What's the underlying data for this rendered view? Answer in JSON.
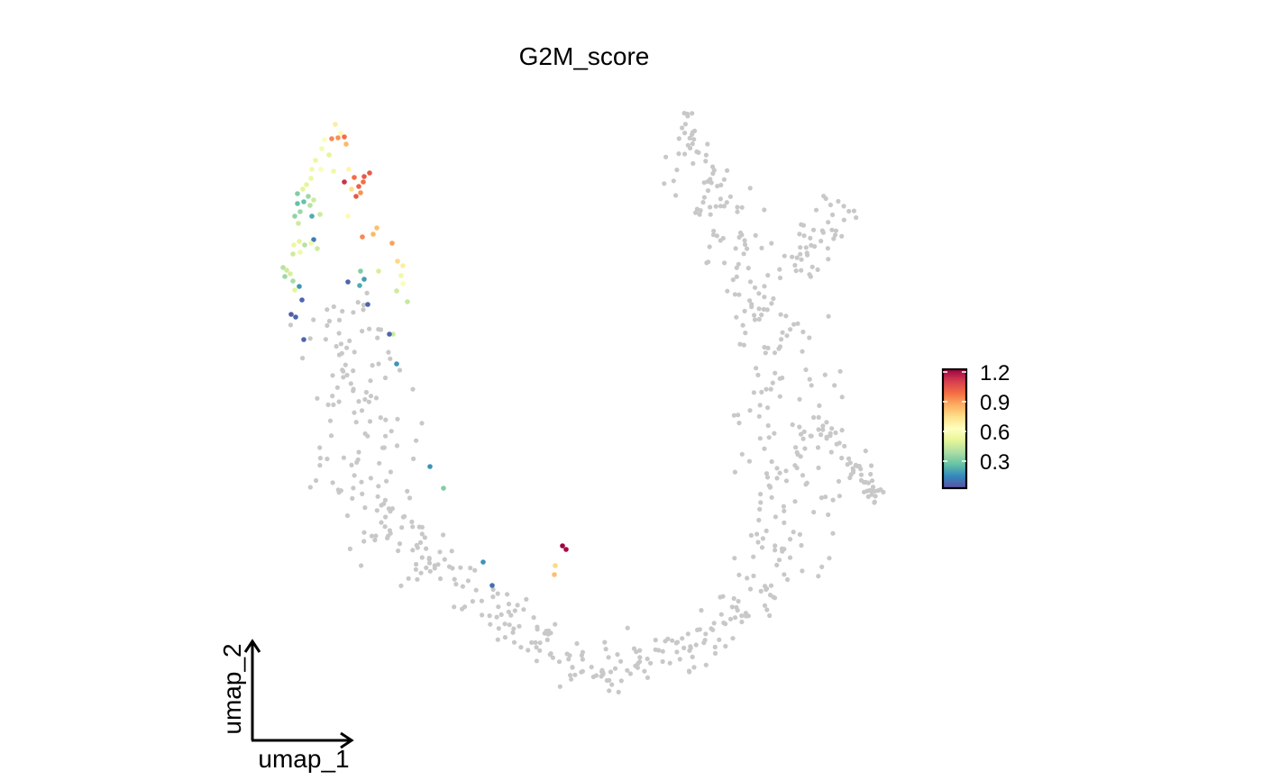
{
  "chart_data": {
    "type": "scatter",
    "title": "G2M_score",
    "xlabel": "umap_1",
    "ylabel": "umap_2",
    "background_color": "#c8c8c8",
    "grid": false,
    "legend_position": "right",
    "colorbar": {
      "ticks": [
        "1.2",
        "0.9",
        "0.6",
        "0.3"
      ],
      "range": [
        0.05,
        1.3
      ],
      "palette": [
        "#5e4fa2",
        "#3288bd",
        "#66c2a5",
        "#abdda4",
        "#e6f598",
        "#ffffbf",
        "#fee08b",
        "#fdae61",
        "#f46d43",
        "#d53e4f",
        "#9e0142"
      ]
    },
    "points": [
      {
        "x": 372,
        "y": 138,
        "v": 0.75
      },
      {
        "x": 378,
        "y": 148,
        "v": 0.7
      },
      {
        "x": 360,
        "y": 155,
        "v": 0.65
      },
      {
        "x": 368,
        "y": 154,
        "v": 1.0
      },
      {
        "x": 375,
        "y": 153,
        "v": 0.98
      },
      {
        "x": 382,
        "y": 152,
        "v": 1.05
      },
      {
        "x": 384,
        "y": 160,
        "v": 0.9
      },
      {
        "x": 357,
        "y": 165,
        "v": 0.62
      },
      {
        "x": 350,
        "y": 178,
        "v": 0.58
      },
      {
        "x": 365,
        "y": 172,
        "v": 0.55
      },
      {
        "x": 346,
        "y": 188,
        "v": 0.6
      },
      {
        "x": 356,
        "y": 188,
        "v": 0.65
      },
      {
        "x": 370,
        "y": 190,
        "v": 0.6
      },
      {
        "x": 387,
        "y": 188,
        "v": 0.72
      },
      {
        "x": 393,
        "y": 197,
        "v": 1.05
      },
      {
        "x": 404,
        "y": 196,
        "v": 1.1
      },
      {
        "x": 410,
        "y": 192,
        "v": 1.1
      },
      {
        "x": 382,
        "y": 202,
        "v": 1.2
      },
      {
        "x": 398,
        "y": 207,
        "v": 1.08
      },
      {
        "x": 403,
        "y": 202,
        "v": 1.05
      },
      {
        "x": 390,
        "y": 210,
        "v": 0.8
      },
      {
        "x": 395,
        "y": 218,
        "v": 1.1
      },
      {
        "x": 400,
        "y": 214,
        "v": 0.98
      },
      {
        "x": 345,
        "y": 198,
        "v": 0.58
      },
      {
        "x": 340,
        "y": 205,
        "v": 0.55
      },
      {
        "x": 336,
        "y": 210,
        "v": 0.55
      },
      {
        "x": 330,
        "y": 215,
        "v": 0.35
      },
      {
        "x": 342,
        "y": 218,
        "v": 0.4
      },
      {
        "x": 348,
        "y": 222,
        "v": 0.5
      },
      {
        "x": 337,
        "y": 224,
        "v": 0.3
      },
      {
        "x": 330,
        "y": 226,
        "v": 0.3
      },
      {
        "x": 344,
        "y": 228,
        "v": 0.45
      },
      {
        "x": 333,
        "y": 235,
        "v": 0.4
      },
      {
        "x": 346,
        "y": 240,
        "v": 0.25
      },
      {
        "x": 355,
        "y": 238,
        "v": 0.5
      },
      {
        "x": 327,
        "y": 240,
        "v": 0.38
      },
      {
        "x": 331,
        "y": 248,
        "v": 0.5
      },
      {
        "x": 386,
        "y": 240,
        "v": 0.7
      },
      {
        "x": 418,
        "y": 253,
        "v": 0.88
      },
      {
        "x": 402,
        "y": 263,
        "v": 1.0
      },
      {
        "x": 414,
        "y": 260,
        "v": 0.9
      },
      {
        "x": 348,
        "y": 266,
        "v": 0.15
      },
      {
        "x": 345,
        "y": 270,
        "v": 0.6
      },
      {
        "x": 332,
        "y": 268,
        "v": 0.55
      },
      {
        "x": 326,
        "y": 272,
        "v": 0.58
      },
      {
        "x": 338,
        "y": 272,
        "v": 0.45
      },
      {
        "x": 352,
        "y": 276,
        "v": 0.5
      },
      {
        "x": 333,
        "y": 280,
        "v": 0.6
      },
      {
        "x": 325,
        "y": 282,
        "v": 0.5
      },
      {
        "x": 435,
        "y": 270,
        "v": 0.95
      },
      {
        "x": 441,
        "y": 290,
        "v": 0.82
      },
      {
        "x": 447,
        "y": 295,
        "v": 0.75
      },
      {
        "x": 314,
        "y": 297,
        "v": 0.45
      },
      {
        "x": 318,
        "y": 300,
        "v": 0.5
      },
      {
        "x": 322,
        "y": 304,
        "v": 0.52
      },
      {
        "x": 316,
        "y": 307,
        "v": 0.4
      },
      {
        "x": 325,
        "y": 312,
        "v": 0.42
      },
      {
        "x": 400,
        "y": 301,
        "v": 0.35
      },
      {
        "x": 420,
        "y": 301,
        "v": 0.52
      },
      {
        "x": 445,
        "y": 306,
        "v": 0.6
      },
      {
        "x": 447,
        "y": 315,
        "v": 0.65
      },
      {
        "x": 404,
        "y": 310,
        "v": 0.22
      },
      {
        "x": 386,
        "y": 313,
        "v": 0.1
      },
      {
        "x": 399,
        "y": 317,
        "v": 0.25
      },
      {
        "x": 332,
        "y": 318,
        "v": 0.2
      },
      {
        "x": 327,
        "y": 322,
        "v": 0.55
      },
      {
        "x": 440,
        "y": 323,
        "v": 0.5
      },
      {
        "x": 452,
        "y": 335,
        "v": 0.48
      },
      {
        "x": 335,
        "y": 333,
        "v": 0.1
      },
      {
        "x": 408,
        "y": 338,
        "v": 0.1
      },
      {
        "x": 323,
        "y": 349,
        "v": 0.08
      },
      {
        "x": 328,
        "y": 352,
        "v": 0.1
      },
      {
        "x": 436,
        "y": 371,
        "v": 0.5
      },
      {
        "x": 432,
        "y": 371,
        "v": 0.1
      },
      {
        "x": 337,
        "y": 377,
        "v": 0.1
      },
      {
        "x": 440,
        "y": 404,
        "v": 0.2
      },
      {
        "x": 477,
        "y": 518,
        "v": 0.2
      },
      {
        "x": 492,
        "y": 542,
        "v": 0.35
      },
      {
        "x": 624,
        "y": 606,
        "v": 1.3
      },
      {
        "x": 628,
        "y": 610,
        "v": 1.28
      },
      {
        "x": 536,
        "y": 624,
        "v": 0.2
      },
      {
        "x": 616,
        "y": 628,
        "v": 0.82
      },
      {
        "x": 615,
        "y": 638,
        "v": 0.88
      },
      {
        "x": 546,
        "y": 650,
        "v": 0.12
      }
    ]
  }
}
